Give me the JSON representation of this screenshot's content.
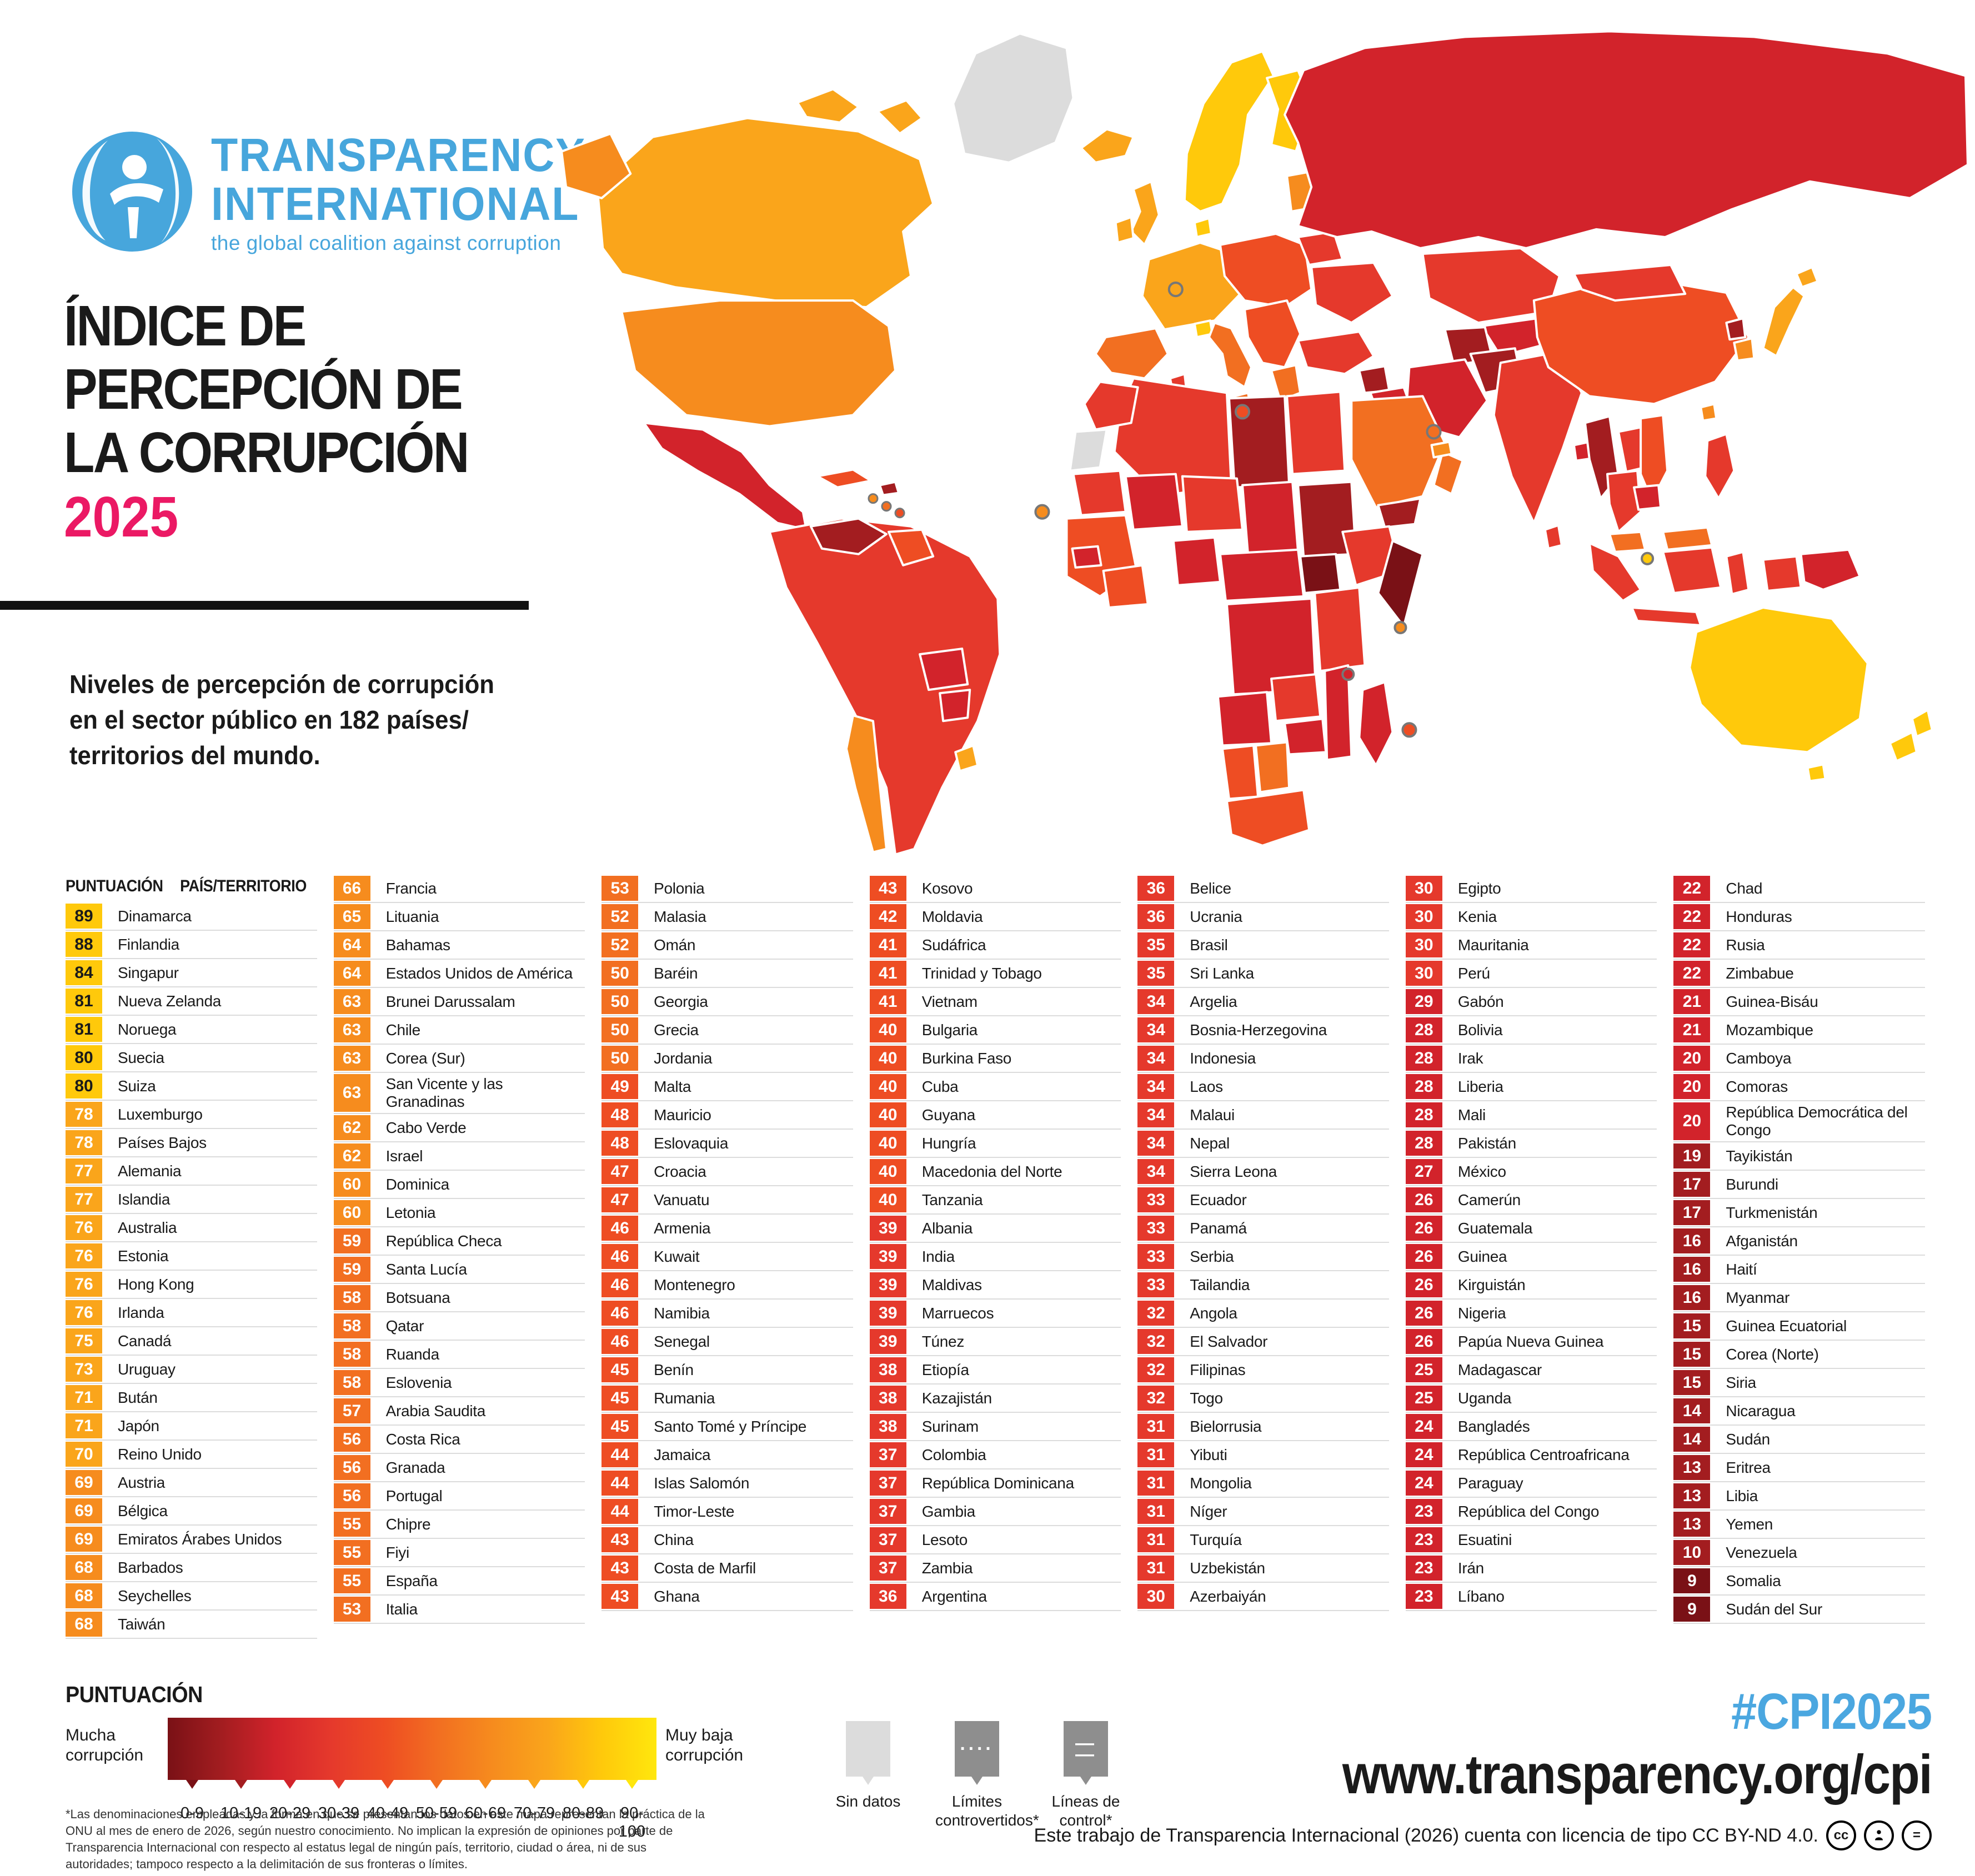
{
  "logo": {
    "line1": "TRANSPARENCY",
    "line2": "INTERNATIONAL",
    "tagline": "the global coalition against corruption"
  },
  "title": {
    "line1": "ÍNDICE DE",
    "line2": "PERCEPCIÓN DE",
    "line3": "LA CORRUPCIÓN",
    "year": "2025"
  },
  "subtitle": {
    "line1": "Niveles de percepción de corrupción",
    "line2": "en el sector público en 182 países/",
    "line3": "territorios del mundo."
  },
  "list": {
    "score_header": "PUNTUACIÓN",
    "country_header": "PAÍS/TERRITORIO",
    "columns": [
      [
        {
          "score": 89,
          "name": "Dinamarca"
        },
        {
          "score": 88,
          "name": "Finlandia"
        },
        {
          "score": 84,
          "name": "Singapur"
        },
        {
          "score": 81,
          "name": "Nueva Zelanda"
        },
        {
          "score": 81,
          "name": "Noruega"
        },
        {
          "score": 80,
          "name": "Suecia"
        },
        {
          "score": 80,
          "name": "Suiza"
        },
        {
          "score": 78,
          "name": "Luxemburgo"
        },
        {
          "score": 78,
          "name": "Países Bajos"
        },
        {
          "score": 77,
          "name": "Alemania"
        },
        {
          "score": 77,
          "name": "Islandia"
        },
        {
          "score": 76,
          "name": "Australia"
        },
        {
          "score": 76,
          "name": "Estonia"
        },
        {
          "score": 76,
          "name": "Hong Kong"
        },
        {
          "score": 76,
          "name": "Irlanda"
        },
        {
          "score": 75,
          "name": "Canadá"
        },
        {
          "score": 73,
          "name": "Uruguay"
        },
        {
          "score": 71,
          "name": "Bután"
        },
        {
          "score": 71,
          "name": "Japón"
        },
        {
          "score": 70,
          "name": "Reino Unido"
        },
        {
          "score": 69,
          "name": "Austria"
        },
        {
          "score": 69,
          "name": "Bélgica"
        },
        {
          "score": 69,
          "name": "Emiratos Árabes Unidos"
        },
        {
          "score": 68,
          "name": "Barbados"
        },
        {
          "score": 68,
          "name": "Seychelles"
        },
        {
          "score": 68,
          "name": "Taiwán"
        }
      ],
      [
        {
          "score": 66,
          "name": "Francia"
        },
        {
          "score": 65,
          "name": "Lituania"
        },
        {
          "score": 64,
          "name": "Bahamas"
        },
        {
          "score": 64,
          "name": "Estados Unidos de América"
        },
        {
          "score": 63,
          "name": "Brunei Darussalam"
        },
        {
          "score": 63,
          "name": "Chile"
        },
        {
          "score": 63,
          "name": "Corea (Sur)"
        },
        {
          "score": 63,
          "name": "San Vicente y las Granadinas"
        },
        {
          "score": 62,
          "name": "Cabo Verde"
        },
        {
          "score": 62,
          "name": "Israel"
        },
        {
          "score": 60,
          "name": "Dominica"
        },
        {
          "score": 60,
          "name": "Letonia"
        },
        {
          "score": 59,
          "name": "República Checa"
        },
        {
          "score": 59,
          "name": "Santa Lucía"
        },
        {
          "score": 58,
          "name": "Botsuana"
        },
        {
          "score": 58,
          "name": "Qatar"
        },
        {
          "score": 58,
          "name": "Ruanda"
        },
        {
          "score": 58,
          "name": "Eslovenia"
        },
        {
          "score": 57,
          "name": "Arabia Saudita"
        },
        {
          "score": 56,
          "name": "Costa Rica"
        },
        {
          "score": 56,
          "name": "Granada"
        },
        {
          "score": 56,
          "name": "Portugal"
        },
        {
          "score": 55,
          "name": "Chipre"
        },
        {
          "score": 55,
          "name": "Fiyi"
        },
        {
          "score": 55,
          "name": "España"
        },
        {
          "score": 53,
          "name": "Italia"
        }
      ],
      [
        {
          "score": 53,
          "name": "Polonia"
        },
        {
          "score": 52,
          "name": "Malasia"
        },
        {
          "score": 52,
          "name": "Omán"
        },
        {
          "score": 50,
          "name": "Baréin"
        },
        {
          "score": 50,
          "name": "Georgia"
        },
        {
          "score": 50,
          "name": "Grecia"
        },
        {
          "score": 50,
          "name": "Jordania"
        },
        {
          "score": 49,
          "name": "Malta"
        },
        {
          "score": 48,
          "name": "Mauricio"
        },
        {
          "score": 48,
          "name": "Eslovaquia"
        },
        {
          "score": 47,
          "name": "Croacia"
        },
        {
          "score": 47,
          "name": "Vanuatu"
        },
        {
          "score": 46,
          "name": "Armenia"
        },
        {
          "score": 46,
          "name": "Kuwait"
        },
        {
          "score": 46,
          "name": "Montenegro"
        },
        {
          "score": 46,
          "name": "Namibia"
        },
        {
          "score": 46,
          "name": "Senegal"
        },
        {
          "score": 45,
          "name": "Benín"
        },
        {
          "score": 45,
          "name": "Rumania"
        },
        {
          "score": 45,
          "name": "Santo Tomé y Príncipe"
        },
        {
          "score": 44,
          "name": "Jamaica"
        },
        {
          "score": 44,
          "name": "Islas Salomón"
        },
        {
          "score": 44,
          "name": "Timor-Leste"
        },
        {
          "score": 43,
          "name": "China"
        },
        {
          "score": 43,
          "name": "Costa de Marfil"
        },
        {
          "score": 43,
          "name": "Ghana"
        }
      ],
      [
        {
          "score": 43,
          "name": "Kosovo"
        },
        {
          "score": 42,
          "name": "Moldavia"
        },
        {
          "score": 41,
          "name": "Sudáfrica"
        },
        {
          "score": 41,
          "name": "Trinidad y Tobago"
        },
        {
          "score": 41,
          "name": "Vietnam"
        },
        {
          "score": 40,
          "name": "Bulgaria"
        },
        {
          "score": 40,
          "name": "Burkina Faso"
        },
        {
          "score": 40,
          "name": "Cuba"
        },
        {
          "score": 40,
          "name": "Guyana"
        },
        {
          "score": 40,
          "name": "Hungría"
        },
        {
          "score": 40,
          "name": "Macedonia del Norte"
        },
        {
          "score": 40,
          "name": "Tanzania"
        },
        {
          "score": 39,
          "name": "Albania"
        },
        {
          "score": 39,
          "name": "India"
        },
        {
          "score": 39,
          "name": "Maldivas"
        },
        {
          "score": 39,
          "name": "Marruecos"
        },
        {
          "score": 39,
          "name": "Túnez"
        },
        {
          "score": 38,
          "name": "Etiopía"
        },
        {
          "score": 38,
          "name": "Kazajistán"
        },
        {
          "score": 38,
          "name": "Surinam"
        },
        {
          "score": 37,
          "name": "Colombia"
        },
        {
          "score": 37,
          "name": "República Dominicana"
        },
        {
          "score": 37,
          "name": "Gambia"
        },
        {
          "score": 37,
          "name": "Lesoto"
        },
        {
          "score": 37,
          "name": "Zambia"
        },
        {
          "score": 36,
          "name": "Argentina"
        }
      ],
      [
        {
          "score": 36,
          "name": "Belice"
        },
        {
          "score": 36,
          "name": "Ucrania"
        },
        {
          "score": 35,
          "name": "Brasil"
        },
        {
          "score": 35,
          "name": "Sri Lanka"
        },
        {
          "score": 34,
          "name": "Argelia"
        },
        {
          "score": 34,
          "name": "Bosnia-Herzegovina"
        },
        {
          "score": 34,
          "name": "Indonesia"
        },
        {
          "score": 34,
          "name": "Laos"
        },
        {
          "score": 34,
          "name": "Malaui"
        },
        {
          "score": 34,
          "name": "Nepal"
        },
        {
          "score": 34,
          "name": "Sierra Leona"
        },
        {
          "score": 33,
          "name": "Ecuador"
        },
        {
          "score": 33,
          "name": "Panamá"
        },
        {
          "score": 33,
          "name": "Serbia"
        },
        {
          "score": 33,
          "name": "Tailandia"
        },
        {
          "score": 32,
          "name": "Angola"
        },
        {
          "score": 32,
          "name": "El Salvador"
        },
        {
          "score": 32,
          "name": "Filipinas"
        },
        {
          "score": 32,
          "name": "Togo"
        },
        {
          "score": 31,
          "name": "Bielorrusia"
        },
        {
          "score": 31,
          "name": "Yibuti"
        },
        {
          "score": 31,
          "name": "Mongolia"
        },
        {
          "score": 31,
          "name": "Níger"
        },
        {
          "score": 31,
          "name": "Turquía"
        },
        {
          "score": 31,
          "name": "Uzbekistán"
        },
        {
          "score": 30,
          "name": "Azerbaiyán"
        }
      ],
      [
        {
          "score": 30,
          "name": "Egipto"
        },
        {
          "score": 30,
          "name": "Kenia"
        },
        {
          "score": 30,
          "name": "Mauritania"
        },
        {
          "score": 30,
          "name": "Perú"
        },
        {
          "score": 29,
          "name": "Gabón"
        },
        {
          "score": 28,
          "name": "Bolivia"
        },
        {
          "score": 28,
          "name": "Irak"
        },
        {
          "score": 28,
          "name": "Liberia"
        },
        {
          "score": 28,
          "name": "Mali"
        },
        {
          "score": 28,
          "name": "Pakistán"
        },
        {
          "score": 27,
          "name": "México"
        },
        {
          "score": 26,
          "name": "Camerún"
        },
        {
          "score": 26,
          "name": "Guatemala"
        },
        {
          "score": 26,
          "name": "Guinea"
        },
        {
          "score": 26,
          "name": "Kirguistán"
        },
        {
          "score": 26,
          "name": "Nigeria"
        },
        {
          "score": 26,
          "name": "Papúa Nueva Guinea"
        },
        {
          "score": 25,
          "name": "Madagascar"
        },
        {
          "score": 25,
          "name": "Uganda"
        },
        {
          "score": 24,
          "name": "Bangladés"
        },
        {
          "score": 24,
          "name": "República Centroafricana"
        },
        {
          "score": 24,
          "name": "Paraguay"
        },
        {
          "score": 23,
          "name": "República del Congo"
        },
        {
          "score": 23,
          "name": "Esuatini"
        },
        {
          "score": 23,
          "name": "Irán"
        },
        {
          "score": 23,
          "name": "Líbano"
        }
      ],
      [
        {
          "score": 22,
          "name": "Chad"
        },
        {
          "score": 22,
          "name": "Honduras"
        },
        {
          "score": 22,
          "name": "Rusia"
        },
        {
          "score": 22,
          "name": "Zimbabue"
        },
        {
          "score": 21,
          "name": "Guinea-Bisáu"
        },
        {
          "score": 21,
          "name": "Mozambique"
        },
        {
          "score": 20,
          "name": "Camboya"
        },
        {
          "score": 20,
          "name": "Comoras"
        },
        {
          "score": 20,
          "name": "República Democrática del Congo"
        },
        {
          "score": 19,
          "name": "Tayikistán"
        },
        {
          "score": 17,
          "name": "Burundi"
        },
        {
          "score": 17,
          "name": "Turkmenistán"
        },
        {
          "score": 16,
          "name": "Afganistán"
        },
        {
          "score": 16,
          "name": "Haití"
        },
        {
          "score": 16,
          "name": "Myanmar"
        },
        {
          "score": 15,
          "name": "Guinea Ecuatorial"
        },
        {
          "score": 15,
          "name": "Corea (Norte)"
        },
        {
          "score": 15,
          "name": "Siria"
        },
        {
          "score": 14,
          "name": "Nicaragua"
        },
        {
          "score": 14,
          "name": "Sudán"
        },
        {
          "score": 13,
          "name": "Eritrea"
        },
        {
          "score": 13,
          "name": "Libia"
        },
        {
          "score": 13,
          "name": "Yemen"
        },
        {
          "score": 10,
          "name": "Venezuela"
        },
        {
          "score": 9,
          "name": "Somalia"
        },
        {
          "score": 9,
          "name": "Sudán del Sur"
        }
      ]
    ]
  },
  "legend": {
    "title": "PUNTUACIÓN",
    "left_label": "Mucha corrupción",
    "right_label": "Muy baja corrupción",
    "ranges": [
      "0-9",
      "10-19",
      "20-29",
      "30-39",
      "40-49",
      "50-59",
      "60-69",
      "70-79",
      "80-89",
      "90-100"
    ],
    "gradient_stops": [
      "#7A1116",
      "#A31D20",
      "#D2232B",
      "#E5392C",
      "#EE4D23",
      "#F26F21",
      "#F68C1E",
      "#FAA51B",
      "#FFC90B",
      "#FFE70D"
    ],
    "boxes": [
      {
        "label": "Sin datos",
        "symbol": ""
      },
      {
        "label": "Límites controvertidos*",
        "symbol": "····"
      },
      {
        "label": "Líneas de control*",
        "symbol": "— —"
      }
    ]
  },
  "footer": {
    "hashtag": "#CPI2025",
    "url": "www.transparency.org/cpi",
    "license": "Este trabajo de Transparencia Internacional (2026) cuenta con licencia de tipo CC BY-ND 4.0.",
    "footnote": "*Las denominaciones empleadas y la forma en que se presentan los datos en este mapa representan la práctica de la ONU al mes de enero de 2026, según nuestro conocimiento. No implican la expresión de opiniones por parte de Transparencia Internacional con respecto al estatus legal de ningún país, territorio, ciudad o área, ni de sus autoridades; tampoco respecto a la delimitación de sus fronteras o límites."
  },
  "palette": {
    "0-9": "#7A1116",
    "10-19": "#A31D20",
    "20-29": "#D2232B",
    "30-39": "#E5392C",
    "40-49": "#EE4D23",
    "50-59": "#F26F21",
    "60-69": "#F68C1E",
    "70-79": "#FAA51B",
    "80-89": "#FFC90B",
    "90-100": "#FFE70D",
    "no_data": "#DCDCDC",
    "marker_gray": "#8E8E8E",
    "brand_blue": "#47A6DC",
    "hashtag_blue": "#4BA7E0",
    "year_pink": "#EB1964",
    "badge_dark_text": "#1A1A1A"
  }
}
